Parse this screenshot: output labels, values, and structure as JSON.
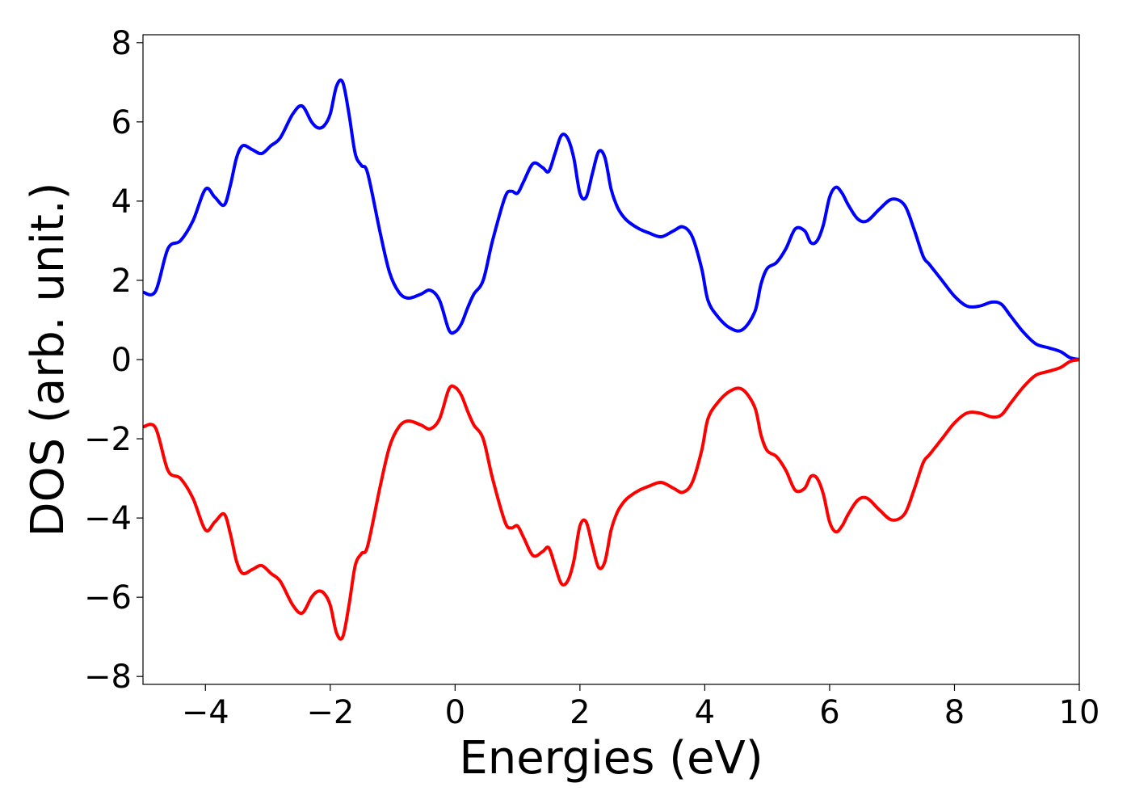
{
  "chart_data": {
    "type": "line",
    "title": "",
    "xlabel": "Energies (eV)",
    "ylabel": "DOS (arb. unit.)",
    "xlim": [
      -5,
      10
    ],
    "ylim": [
      -8.2,
      8.2
    ],
    "x_ticks": [
      -4,
      -2,
      0,
      2,
      4,
      6,
      8,
      10
    ],
    "x_tick_labels": [
      "−4",
      "−2",
      "0",
      "2",
      "4",
      "6",
      "8",
      "10"
    ],
    "y_ticks": [
      -8,
      -6,
      -4,
      -2,
      0,
      2,
      4,
      6,
      8
    ],
    "y_tick_labels": [
      "−8",
      "−6",
      "−4",
      "−2",
      "0",
      "2",
      "4",
      "6",
      "8"
    ],
    "grid": false,
    "legend": "none",
    "series": [
      {
        "color": "#0000ff",
        "x": [
          -5.0,
          -4.8,
          -4.6,
          -4.4,
          -4.2,
          -4.0,
          -3.85,
          -3.7,
          -3.6,
          -3.5,
          -3.4,
          -3.25,
          -3.1,
          -2.95,
          -2.8,
          -2.6,
          -2.45,
          -2.3,
          -2.2,
          -2.1,
          -2.0,
          -1.9,
          -1.8,
          -1.7,
          -1.6,
          -1.5,
          -1.4,
          -1.2,
          -1.05,
          -0.9,
          -0.75,
          -0.55,
          -0.4,
          -0.25,
          -0.1,
          0.0,
          0.1,
          0.2,
          0.3,
          0.45,
          0.6,
          0.8,
          0.9,
          1.0,
          1.1,
          1.25,
          1.4,
          1.5,
          1.6,
          1.7,
          1.8,
          1.9,
          2.0,
          2.1,
          2.2,
          2.3,
          2.4,
          2.5,
          2.6,
          2.7,
          2.8,
          2.95,
          3.1,
          3.3,
          3.5,
          3.65,
          3.8,
          3.95,
          4.05,
          4.2,
          4.4,
          4.6,
          4.8,
          4.9,
          5.0,
          5.15,
          5.3,
          5.45,
          5.6,
          5.7,
          5.8,
          5.9,
          6.0,
          6.1,
          6.2,
          6.3,
          6.45,
          6.6,
          6.8,
          7.0,
          7.2,
          7.35,
          7.5,
          7.6,
          7.8,
          8.0,
          8.2,
          8.4,
          8.6,
          8.75,
          8.9,
          9.1,
          9.3,
          9.5,
          9.7,
          9.85,
          10.0
        ],
        "y": [
          1.7,
          1.72,
          2.8,
          3.0,
          3.5,
          4.3,
          4.1,
          3.9,
          4.4,
          5.1,
          5.4,
          5.3,
          5.2,
          5.4,
          5.6,
          6.2,
          6.4,
          6.0,
          5.85,
          5.9,
          6.2,
          6.9,
          7.0,
          6.2,
          5.2,
          4.9,
          4.7,
          3.2,
          2.2,
          1.7,
          1.55,
          1.65,
          1.75,
          1.5,
          0.75,
          0.7,
          0.9,
          1.3,
          1.65,
          2.0,
          3.0,
          4.1,
          4.25,
          4.2,
          4.5,
          4.95,
          4.85,
          4.75,
          5.2,
          5.65,
          5.6,
          5.1,
          4.2,
          4.1,
          4.7,
          5.25,
          5.1,
          4.3,
          3.85,
          3.6,
          3.45,
          3.3,
          3.2,
          3.1,
          3.25,
          3.35,
          3.1,
          2.3,
          1.5,
          1.1,
          0.8,
          0.75,
          1.2,
          1.9,
          2.3,
          2.45,
          2.8,
          3.3,
          3.25,
          2.95,
          3.0,
          3.4,
          4.1,
          4.35,
          4.2,
          3.9,
          3.55,
          3.5,
          3.8,
          4.05,
          3.9,
          3.3,
          2.6,
          2.4,
          2.0,
          1.6,
          1.35,
          1.35,
          1.45,
          1.4,
          1.1,
          0.7,
          0.4,
          0.3,
          0.2,
          0.05,
          0.0
        ]
      },
      {
        "color": "#ff0000",
        "x": [
          -5.0,
          -4.8,
          -4.6,
          -4.4,
          -4.2,
          -4.0,
          -3.85,
          -3.7,
          -3.6,
          -3.5,
          -3.4,
          -3.25,
          -3.1,
          -2.95,
          -2.8,
          -2.6,
          -2.45,
          -2.3,
          -2.2,
          -2.1,
          -2.0,
          -1.9,
          -1.8,
          -1.7,
          -1.6,
          -1.5,
          -1.4,
          -1.2,
          -1.05,
          -0.9,
          -0.75,
          -0.55,
          -0.4,
          -0.25,
          -0.1,
          0.0,
          0.1,
          0.2,
          0.3,
          0.45,
          0.6,
          0.8,
          0.9,
          1.0,
          1.1,
          1.25,
          1.4,
          1.5,
          1.6,
          1.7,
          1.8,
          1.9,
          2.0,
          2.1,
          2.2,
          2.3,
          2.4,
          2.5,
          2.6,
          2.7,
          2.8,
          2.95,
          3.1,
          3.3,
          3.5,
          3.65,
          3.8,
          3.95,
          4.05,
          4.2,
          4.4,
          4.6,
          4.8,
          4.9,
          5.0,
          5.15,
          5.3,
          5.45,
          5.6,
          5.7,
          5.8,
          5.9,
          6.0,
          6.1,
          6.2,
          6.3,
          6.45,
          6.6,
          6.8,
          7.0,
          7.2,
          7.35,
          7.5,
          7.6,
          7.8,
          8.0,
          8.2,
          8.4,
          8.6,
          8.75,
          8.9,
          9.1,
          9.3,
          9.5,
          9.7,
          9.85,
          10.0
        ],
        "y": [
          -1.7,
          -1.72,
          -2.8,
          -3.0,
          -3.5,
          -4.3,
          -4.1,
          -3.9,
          -4.4,
          -5.1,
          -5.4,
          -5.3,
          -5.2,
          -5.4,
          -5.6,
          -6.2,
          -6.4,
          -6.0,
          -5.85,
          -5.9,
          -6.2,
          -6.9,
          -7.0,
          -6.2,
          -5.2,
          -4.9,
          -4.7,
          -3.2,
          -2.2,
          -1.7,
          -1.55,
          -1.65,
          -1.75,
          -1.5,
          -0.75,
          -0.7,
          -0.9,
          -1.3,
          -1.65,
          -2.0,
          -3.0,
          -4.1,
          -4.25,
          -4.2,
          -4.5,
          -4.95,
          -4.85,
          -4.75,
          -5.2,
          -5.65,
          -5.6,
          -5.1,
          -4.2,
          -4.1,
          -4.7,
          -5.25,
          -5.1,
          -4.3,
          -3.85,
          -3.6,
          -3.45,
          -3.3,
          -3.2,
          -3.1,
          -3.25,
          -3.35,
          -3.1,
          -2.3,
          -1.5,
          -1.1,
          -0.8,
          -0.75,
          -1.2,
          -1.9,
          -2.3,
          -2.45,
          -2.8,
          -3.3,
          -3.25,
          -2.95,
          -3.0,
          -3.4,
          -4.1,
          -4.35,
          -4.2,
          -3.9,
          -3.55,
          -3.5,
          -3.8,
          -4.05,
          -3.9,
          -3.3,
          -2.6,
          -2.4,
          -2.0,
          -1.6,
          -1.35,
          -1.35,
          -1.45,
          -1.4,
          -1.1,
          -0.7,
          -0.4,
          -0.3,
          -0.2,
          -0.05,
          0.0
        ]
      }
    ]
  }
}
